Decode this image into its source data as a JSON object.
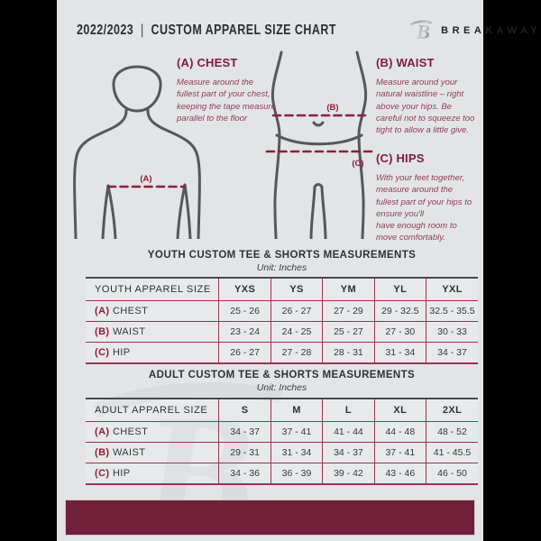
{
  "header": {
    "year": "2022/2023",
    "divider": "|",
    "title": "CUSTOM APPAREL SIZE CHART",
    "brand": "BREAKAWAY"
  },
  "sections": {
    "chest": {
      "title": "(A) CHEST",
      "body": "Measure around the fullest part of your chest, keeping the tape measure parallel to the floor"
    },
    "waist": {
      "title": "(B) WAIST",
      "body": "Measure around your natural waistline – right above your hips. Be careful not to squeeze too tight to allow a little give."
    },
    "hips": {
      "title": "(C) HIPS",
      "body": "With your feet together, measure around the fullest part of your hips to ensure you'll\nhave enough room to move comfortably."
    }
  },
  "diagram": {
    "chest_label": "(A)",
    "waist_label": "(B)",
    "hips_label": "(C)",
    "watermark_letter": "B",
    "logo_letter": "B"
  },
  "youth_table": {
    "title": "YOUTH CUSTOM TEE & SHORTS MEASUREMENTS",
    "unit": "Unit: Inches",
    "header": [
      "YOUTH APPAREL SIZE",
      "YXS",
      "YS",
      "YM",
      "YL",
      "YXL"
    ],
    "rows": [
      {
        "prefix": "(A)",
        "label": "CHEST",
        "values": [
          "25 - 26",
          "26 - 27",
          "27 - 29",
          "29 - 32.5",
          "32.5 - 35.5"
        ]
      },
      {
        "prefix": "(B)",
        "label": "WAIST",
        "values": [
          "23 - 24",
          "24 - 25",
          "25 - 27",
          "27 - 30",
          "30 - 33"
        ]
      },
      {
        "prefix": "(C)",
        "label": "HIP",
        "values": [
          "26 - 27",
          "27 - 28",
          "28 - 31",
          "31 - 34",
          "34 - 37"
        ]
      }
    ]
  },
  "adult_table": {
    "title": "ADULT CUSTOM TEE & SHORTS MEASUREMENTS",
    "unit": "Unit: Inches",
    "header": [
      "ADULT APPAREL SIZE",
      "S",
      "M",
      "L",
      "XL",
      "2XL"
    ],
    "rows": [
      {
        "prefix": "(A)",
        "label": "CHEST",
        "values": [
          "34 - 37",
          "37 - 41",
          "41 - 44",
          "44 - 48",
          "48 - 52"
        ]
      },
      {
        "prefix": "(B)",
        "label": "WAIST",
        "values": [
          "29 - 31",
          "31 - 34",
          "34 - 37",
          "37 - 41",
          "41 - 45.5"
        ]
      },
      {
        "prefix": "(C)",
        "label": "HIP",
        "values": [
          "34 - 36",
          "36 - 39",
          "39 - 42",
          "43 - 46",
          "46 - 50"
        ]
      }
    ]
  },
  "colors": {
    "maroon_footer": "#72203a",
    "maroon_line": "#9b3350",
    "maroon_heading": "#7d1e38",
    "maroon_body_text": "#8c4157",
    "figure_stroke": "#55585b",
    "page_background": "#e3e4e6",
    "pillarbox": "#000000",
    "dark_text": "#2f3133"
  }
}
